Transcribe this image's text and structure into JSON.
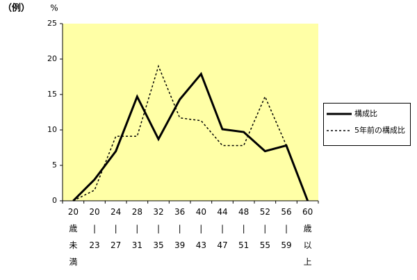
{
  "chart_data": {
    "type": "line",
    "annotations": [
      "（例）",
      "%"
    ],
    "categories": [
      "20\n歳\n未\n満",
      "20\n|\n23",
      "24\n|\n27",
      "28\n|\n31",
      "32\n|\n35",
      "36\n|\n39",
      "40\n|\n43",
      "44\n|\n47",
      "48\n|\n51",
      "52\n|\n55",
      "56\n|\n59",
      "60\n歳\n以\n上"
    ],
    "series": [
      {
        "name": "構成比",
        "color": "#000000",
        "dash": "solid",
        "values": [
          0,
          3.0,
          7.0,
          14.7,
          8.7,
          14.3,
          17.9,
          10.1,
          9.7,
          7.0,
          7.8,
          0
        ]
      },
      {
        "name": "5年前の構成比",
        "color": "#000000",
        "dash": "dotted",
        "values": [
          0,
          1.5,
          9.1,
          9.1,
          19.0,
          11.7,
          11.3,
          7.8,
          7.8,
          14.7,
          7.8,
          null
        ]
      }
    ],
    "ylim": [
      0,
      25
    ],
    "yticks": [
      0,
      5,
      10,
      15,
      20,
      25
    ],
    "plot_background": "#ffffa6",
    "legend": "right"
  }
}
